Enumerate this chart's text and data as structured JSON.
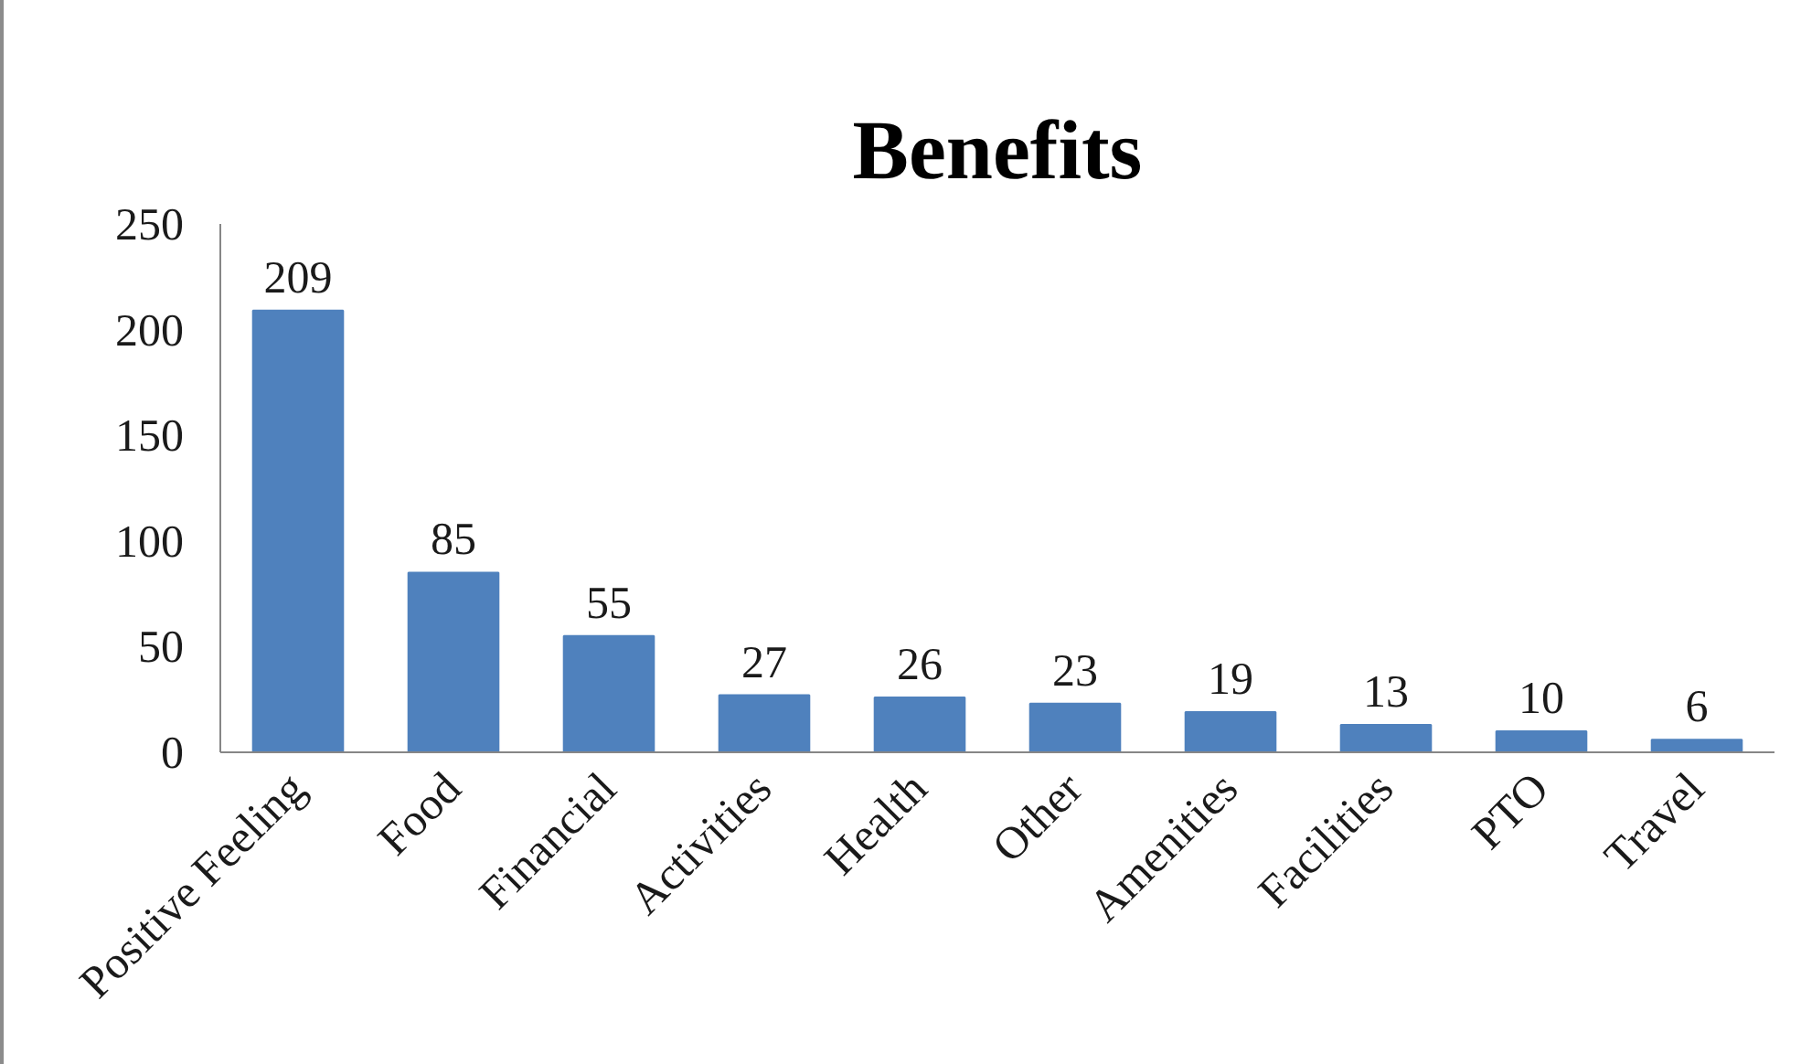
{
  "chart_data": {
    "type": "bar",
    "title": "Benefits",
    "categories": [
      "Positive Feeling",
      "Food",
      "Financial",
      "Activities",
      "Health",
      "Other",
      "Amenities",
      "Facilities",
      "PTO",
      "Travel"
    ],
    "values": [
      209,
      85,
      55,
      27,
      26,
      23,
      19,
      13,
      10,
      6
    ],
    "color": "#4f81bd",
    "ylim": [
      0,
      250
    ],
    "yticks": [
      0,
      50,
      100,
      150,
      200,
      250
    ],
    "data_labels": true,
    "grid": false
  }
}
